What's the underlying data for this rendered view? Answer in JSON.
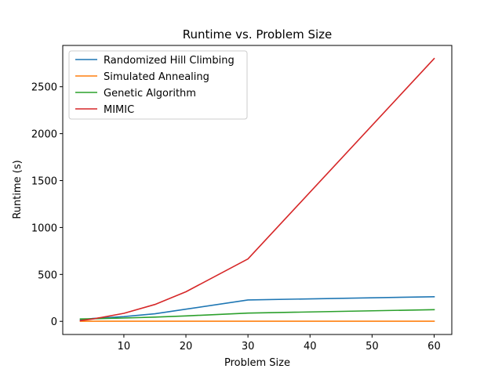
{
  "chart_data": {
    "type": "line",
    "title": "Runtime vs. Problem Size",
    "xlabel": "Problem Size",
    "ylabel": "Runtime (s)",
    "xlim": [
      0.15,
      62.85
    ],
    "ylim": [
      -140,
      2940
    ],
    "x_ticks": [
      10,
      20,
      30,
      40,
      50,
      60
    ],
    "y_ticks": [
      0,
      500,
      1000,
      1500,
      2000,
      2500
    ],
    "x_tick_labels": [
      "10",
      "20",
      "30",
      "40",
      "50",
      "60"
    ],
    "y_tick_labels": [
      "0",
      "500",
      "1000",
      "1500",
      "2000",
      "2500"
    ],
    "grid": false,
    "legend_position": "upper-left",
    "series": [
      {
        "name": "Randomized Hill Climbing",
        "color": "#1f77b4",
        "x": [
          3,
          5,
          10,
          15,
          20,
          30,
          60
        ],
        "y": [
          15,
          30,
          50,
          80,
          130,
          228,
          262
        ]
      },
      {
        "name": "Simulated Annealing",
        "color": "#ff7f0e",
        "x": [
          3,
          5,
          10,
          15,
          20,
          30,
          60
        ],
        "y": [
          1,
          1,
          1,
          1,
          1,
          1,
          1
        ]
      },
      {
        "name": "Genetic Algorithm",
        "color": "#2ca02c",
        "x": [
          3,
          5,
          10,
          15,
          20,
          30,
          60
        ],
        "y": [
          25,
          28,
          35,
          45,
          58,
          88,
          125
        ]
      },
      {
        "name": "MIMIC",
        "color": "#d62728",
        "x": [
          3,
          5,
          10,
          15,
          20,
          30,
          60
        ],
        "y": [
          8,
          25,
          85,
          180,
          315,
          665,
          2800
        ]
      }
    ]
  }
}
